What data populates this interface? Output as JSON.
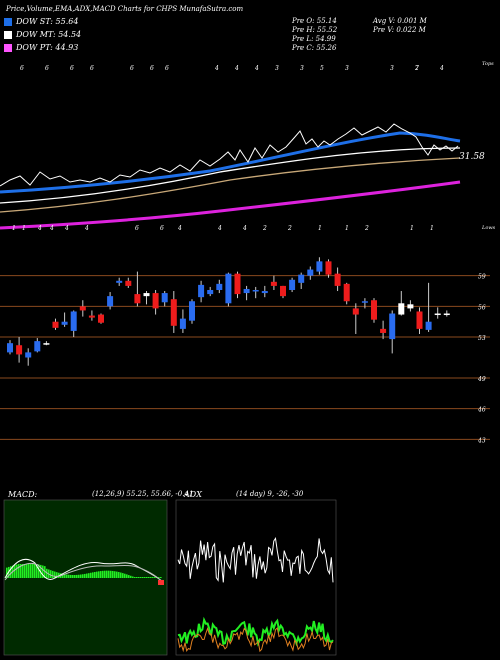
{
  "header": {
    "title": "Price,Volume,EMA,ADX,MACD Charts for CHPS MunafaSutra.com",
    "legend": [
      {
        "label": "DOW ST: 55.64",
        "color": "#1e6fe8"
      },
      {
        "label": "DOW MT: 54.54",
        "color": "#ffffff"
      },
      {
        "label": "DOW PT: 44.93",
        "color": "#ff55ff"
      }
    ],
    "stats_mid": [
      "Pre  O: 55.14",
      "Pre  H: 55.52",
      "Pre  L: 54.99",
      "Pre  C: 55.26"
    ],
    "stats_right": [
      "Avg V: 0.001 M",
      "Pre  V: 0.022  M"
    ]
  },
  "ema_panel": {
    "top_label": "Tops",
    "bottom_label": "Lows",
    "price_label": "31.58",
    "top_numbers": [
      "6",
      "6",
      "6",
      "6",
      "6",
      "6",
      "6",
      "4",
      "4",
      "4",
      "3",
      "3",
      "5",
      "3",
      "3",
      "7",
      "2",
      "4"
    ],
    "bottom_numbers": [
      "1",
      "1",
      "4",
      "4",
      "4",
      "4",
      "6",
      "6",
      "4",
      "4",
      "4",
      "2",
      "2",
      "1",
      "1",
      "2",
      "1",
      "1"
    ],
    "colors": {
      "price": "#ffffff",
      "st": "#1e6fe8",
      "mt": "#ffffff",
      "lt": "#c8a878",
      "pt": "#dd22dd"
    }
  },
  "candle_panel": {
    "y_labels": [
      "59",
      "56",
      "53",
      "49",
      "46",
      "43"
    ]
  },
  "macd": {
    "label": "MACD:",
    "params": "(12,26,9) 55.25, 55.66, -0.41"
  },
  "adx": {
    "label": "ADX",
    "params": "(14  day) 9, -26, -30"
  },
  "chart_data": {
    "type": "candlestick",
    "ylim": [
      40,
      62
    ],
    "y_ticks": [
      59,
      56,
      53,
      49,
      46,
      43
    ],
    "candles": [
      {
        "o": 51.5,
        "h": 52.7,
        "l": 51.3,
        "c": 52.4,
        "dir": "up"
      },
      {
        "o": 52.2,
        "h": 53.0,
        "l": 50.5,
        "c": 51.3,
        "dir": "down"
      },
      {
        "o": 51.0,
        "h": 51.9,
        "l": 50.2,
        "c": 51.5,
        "dir": "up"
      },
      {
        "o": 51.6,
        "h": 52.9,
        "l": 51.5,
        "c": 52.6,
        "dir": "up"
      },
      {
        "o": 52.4,
        "h": 52.6,
        "l": 52.2,
        "c": 52.3,
        "dir": "flat"
      },
      {
        "o": 54.5,
        "h": 54.8,
        "l": 53.7,
        "c": 53.9,
        "dir": "down"
      },
      {
        "o": 54.2,
        "h": 55.4,
        "l": 54.0,
        "c": 54.5,
        "dir": "up"
      },
      {
        "o": 53.6,
        "h": 55.6,
        "l": 53.0,
        "c": 55.5,
        "dir": "up"
      },
      {
        "o": 56.0,
        "h": 56.6,
        "l": 55.0,
        "c": 55.6,
        "dir": "down"
      },
      {
        "o": 55.1,
        "h": 55.6,
        "l": 54.6,
        "c": 54.9,
        "dir": "down"
      },
      {
        "o": 55.2,
        "h": 55.3,
        "l": 54.3,
        "c": 54.4,
        "dir": "down"
      },
      {
        "o": 56.0,
        "h": 57.4,
        "l": 55.7,
        "c": 57.0,
        "dir": "up"
      },
      {
        "o": 58.3,
        "h": 58.8,
        "l": 58.0,
        "c": 58.5,
        "dir": "up"
      },
      {
        "o": 58.5,
        "h": 58.8,
        "l": 57.8,
        "c": 58.0,
        "dir": "down"
      },
      {
        "o": 57.2,
        "h": 59.4,
        "l": 56.0,
        "c": 56.3,
        "dir": "down"
      },
      {
        "o": 57.0,
        "h": 57.5,
        "l": 56.2,
        "c": 57.3,
        "dir": "flat"
      },
      {
        "o": 57.3,
        "h": 57.6,
        "l": 55.2,
        "c": 55.8,
        "dir": "down"
      },
      {
        "o": 56.4,
        "h": 57.5,
        "l": 56.0,
        "c": 57.3,
        "dir": "up"
      },
      {
        "o": 56.7,
        "h": 57.5,
        "l": 53.4,
        "c": 54.1,
        "dir": "down"
      },
      {
        "o": 53.8,
        "h": 55.7,
        "l": 53.4,
        "c": 54.8,
        "dir": "up"
      },
      {
        "o": 54.6,
        "h": 56.7,
        "l": 54.3,
        "c": 56.5,
        "dir": "up"
      },
      {
        "o": 56.9,
        "h": 58.5,
        "l": 56.4,
        "c": 58.1,
        "dir": "up"
      },
      {
        "o": 57.6,
        "h": 57.9,
        "l": 57.0,
        "c": 57.2,
        "dir": "up"
      },
      {
        "o": 57.6,
        "h": 58.6,
        "l": 57.3,
        "c": 58.2,
        "dir": "up"
      },
      {
        "o": 56.3,
        "h": 59.3,
        "l": 56.0,
        "c": 59.2,
        "dir": "up"
      },
      {
        "o": 59.2,
        "h": 59.4,
        "l": 56.8,
        "c": 57.2,
        "dir": "down"
      },
      {
        "o": 57.3,
        "h": 58.0,
        "l": 56.6,
        "c": 57.7,
        "dir": "up"
      },
      {
        "o": 57.6,
        "h": 57.9,
        "l": 56.8,
        "c": 57.5,
        "dir": "up"
      },
      {
        "o": 57.5,
        "h": 58.0,
        "l": 56.9,
        "c": 57.3,
        "dir": "up"
      },
      {
        "o": 58.4,
        "h": 59.0,
        "l": 57.6,
        "c": 58.0,
        "dir": "down"
      },
      {
        "o": 58.0,
        "h": 58.0,
        "l": 56.8,
        "c": 57.0,
        "dir": "down"
      },
      {
        "o": 57.6,
        "h": 58.8,
        "l": 57.4,
        "c": 58.6,
        "dir": "up"
      },
      {
        "o": 58.3,
        "h": 59.3,
        "l": 57.7,
        "c": 59.1,
        "dir": "up"
      },
      {
        "o": 59.0,
        "h": 59.9,
        "l": 58.6,
        "c": 59.6,
        "dir": "up"
      },
      {
        "o": 60.4,
        "h": 60.8,
        "l": 59.1,
        "c": 59.4,
        "dir": "up"
      },
      {
        "o": 60.4,
        "h": 60.6,
        "l": 58.8,
        "c": 59.1,
        "dir": "down"
      },
      {
        "o": 59.2,
        "h": 59.8,
        "l": 57.5,
        "c": 58.0,
        "dir": "down"
      },
      {
        "o": 58.2,
        "h": 58.3,
        "l": 56.2,
        "c": 56.5,
        "dir": "down"
      },
      {
        "o": 55.8,
        "h": 56.3,
        "l": 53.3,
        "c": 55.2,
        "dir": "down"
      },
      {
        "o": 56.5,
        "h": 56.8,
        "l": 55.8,
        "c": 56.4,
        "dir": "up"
      },
      {
        "o": 56.6,
        "h": 56.8,
        "l": 54.4,
        "c": 54.7,
        "dir": "down"
      },
      {
        "o": 53.4,
        "h": 54.6,
        "l": 52.8,
        "c": 53.8,
        "dir": "down"
      },
      {
        "o": 52.8,
        "h": 55.6,
        "l": 51.4,
        "c": 55.3,
        "dir": "up"
      },
      {
        "o": 55.2,
        "h": 57.5,
        "l": 55.1,
        "c": 56.3,
        "dir": "flat"
      },
      {
        "o": 55.8,
        "h": 56.6,
        "l": 55.5,
        "c": 56.2,
        "dir": "flat"
      },
      {
        "o": 55.5,
        "h": 55.9,
        "l": 53.3,
        "c": 53.8,
        "dir": "down"
      },
      {
        "o": 53.7,
        "h": 58.3,
        "l": 53.5,
        "c": 54.5,
        "dir": "up"
      },
      {
        "o": 55.3,
        "h": 55.9,
        "l": 54.8,
        "c": 55.3,
        "dir": "flat"
      },
      {
        "o": 55.3,
        "h": 55.6,
        "l": 55.0,
        "c": 55.3,
        "dir": "flat"
      }
    ]
  }
}
